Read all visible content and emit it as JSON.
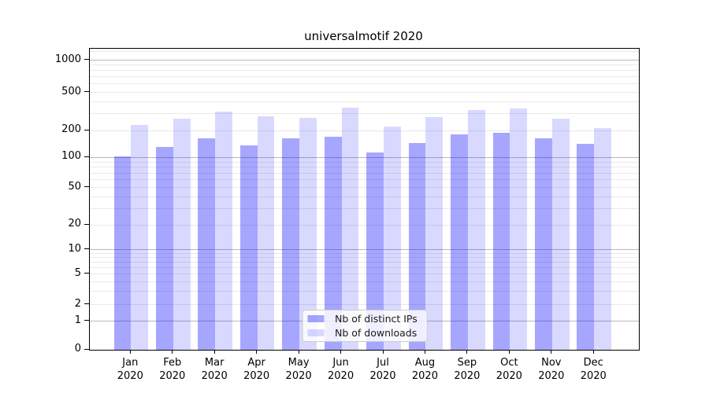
{
  "title": "universalmotif 2020",
  "chart_data": {
    "type": "bar",
    "title": "universalmotif 2020",
    "categories": [
      "Jan",
      "Feb",
      "Mar",
      "Apr",
      "May",
      "Jun",
      "Jul",
      "Aug",
      "Sep",
      "Oct",
      "Nov",
      "Dec"
    ],
    "x_tick_year": "2020",
    "series": [
      {
        "name": "Nb of distinct IPs",
        "color": "rgba(0,0,255,0.35)",
        "values": [
          102,
          130,
          165,
          136,
          165,
          169,
          114,
          146,
          180,
          188,
          165,
          143
        ]
      },
      {
        "name": "Nb of downloads",
        "color": "rgba(0,0,255,0.15)",
        "values": [
          227,
          268,
          318,
          280,
          270,
          350,
          222,
          276,
          325,
          342,
          265,
          212
        ]
      }
    ],
    "yticks": [
      1000,
      500,
      200,
      100,
      50,
      20,
      10,
      5,
      2,
      1,
      0
    ],
    "ylim": [
      0,
      1320
    ],
    "yscale": "log-compressed",
    "grid": true,
    "legend_position": "lower center inside"
  }
}
